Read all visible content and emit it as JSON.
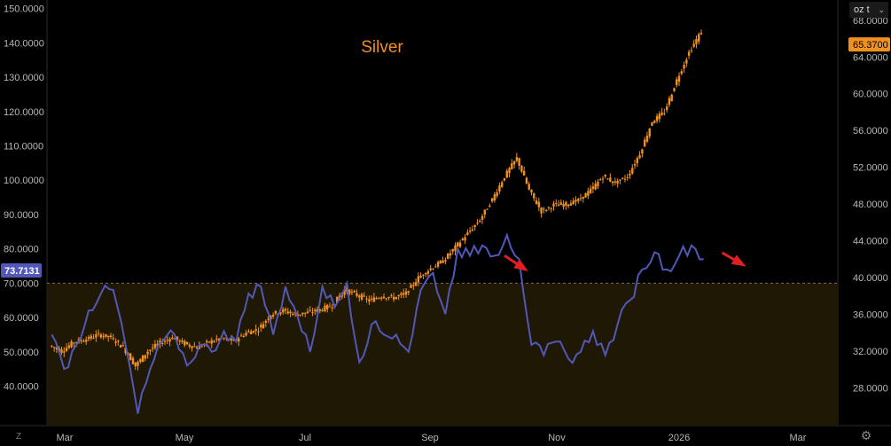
{
  "colors": {
    "background": "#000000",
    "candle": "#f0901e",
    "line": "#5158b8",
    "arrow": "#e02020",
    "band": "#1f1804",
    "threshold": "#7a6f55",
    "title": "#f0901e",
    "axis_text": "#b8b8b8"
  },
  "toolbar": {
    "unit_label": "oz t",
    "z_label": "Z"
  },
  "chart_data": {
    "type": "line",
    "title": "Silver",
    "x_ticks": [
      "Mar",
      "May",
      "Jul",
      "Sep",
      "Nov",
      "2026",
      "Mar"
    ],
    "x_start_week": 0,
    "x_end_week": 64,
    "left_axis": {
      "ticks": [
        "40.0000",
        "50.0000",
        "60.0000",
        "70.0000",
        "80.0000",
        "90.0000",
        "100.0000",
        "110.0000",
        "120.0000",
        "130.0000",
        "140.0000",
        "150.0000"
      ],
      "range": [
        28.5,
        152.5
      ],
      "current_label": "73.7131",
      "current_value": 73.7131,
      "threshold_value": 70
    },
    "right_axis": {
      "ticks": [
        "28.0000",
        "32.0000",
        "36.0000",
        "40.0000",
        "44.0000",
        "48.0000",
        "52.0000",
        "56.0000",
        "60.0000",
        "64.0000",
        "68.0000"
      ],
      "range": [
        23.9,
        70.2
      ],
      "current_label": "65.3700",
      "current_value": 65.37
    },
    "series": [
      {
        "axis": "right",
        "kind": "candlestick",
        "values": [
          32.6,
          32.0,
          33.0,
          33.3,
          33.8,
          33.5,
          32.4,
          30.4,
          32.0,
          32.9,
          33.5,
          32.8,
          32.4,
          33.0,
          33.4,
          33.1,
          34.0,
          34.4,
          36.0,
          36.4,
          36.0,
          36.2,
          36.5,
          37.0,
          38.7,
          38.1,
          37.5,
          38.0,
          37.8,
          38.3,
          40.0,
          41.0,
          41.8,
          43.3,
          44.8,
          46.3,
          48.5,
          51.0,
          53.0,
          49.5,
          47.2,
          47.9,
          48.0,
          48.4,
          49.5,
          51.0,
          50.3,
          51.0,
          53.5,
          57.0,
          58.0,
          61.5,
          64.5,
          66.8
        ]
      },
      {
        "axis": "left",
        "kind": "line",
        "values": [
          55,
          45,
          52,
          62,
          67,
          68,
          52,
          32,
          45,
          53,
          55,
          46,
          52,
          50,
          56,
          53,
          67,
          69,
          55,
          69,
          60,
          50,
          69,
          63,
          70,
          47,
          58,
          55,
          55,
          50,
          68,
          73,
          61,
          80,
          78,
          81,
          78,
          84,
          77,
          52,
          49,
          53,
          48,
          50,
          56,
          49,
          58,
          65,
          74,
          79,
          74,
          78,
          81,
          77
        ]
      }
    ],
    "annotations": [
      {
        "type": "arrow",
        "from": [
          36.9,
          42.4
        ],
        "to": [
          38.6,
          40.9
        ],
        "axis": "right"
      },
      {
        "type": "arrow",
        "from": [
          54.6,
          42.7
        ],
        "to": [
          56.3,
          41.4
        ],
        "axis": "right"
      }
    ]
  }
}
